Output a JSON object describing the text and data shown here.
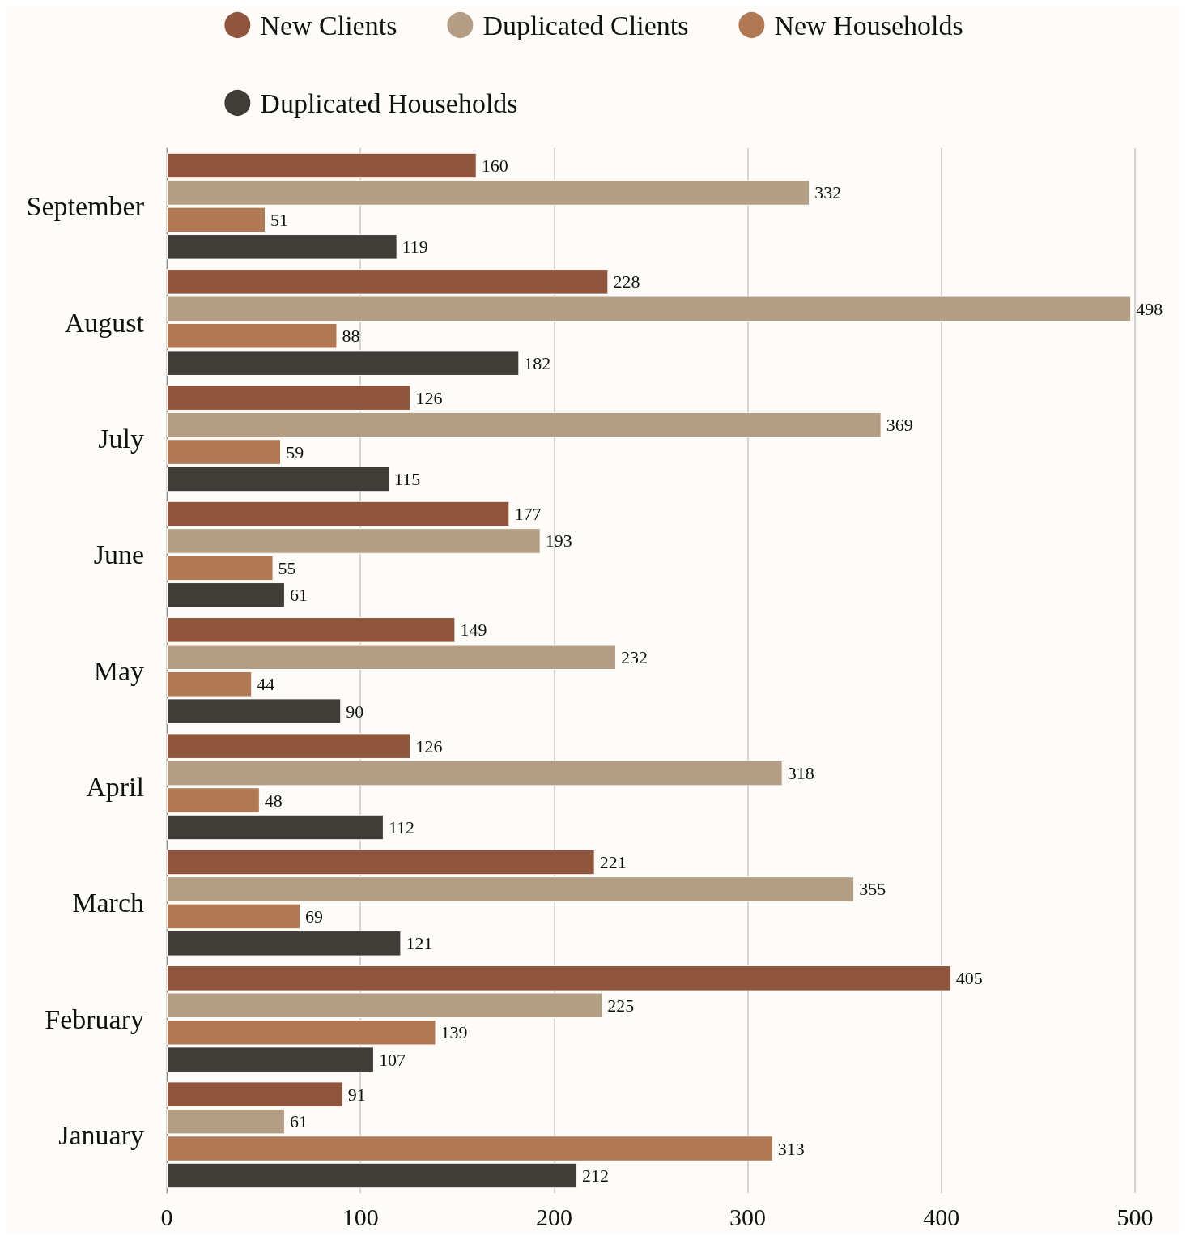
{
  "chart_data": {
    "type": "bar",
    "orientation": "horizontal",
    "categories": [
      "September",
      "August",
      "July",
      "June",
      "May",
      "April",
      "March",
      "February",
      "January"
    ],
    "series": [
      {
        "name": "New Clients",
        "color": "#8f553d",
        "values": [
          160,
          228,
          126,
          177,
          149,
          126,
          221,
          405,
          91
        ]
      },
      {
        "name": "Duplicated Clients",
        "color": "#b39e85",
        "values": [
          332,
          498,
          369,
          193,
          232,
          318,
          355,
          225,
          61
        ]
      },
      {
        "name": "New Households",
        "color": "#b07853",
        "values": [
          51,
          88,
          59,
          55,
          44,
          48,
          69,
          139,
          313
        ]
      },
      {
        "name": "Duplicated Households",
        "color": "#403c38",
        "values": [
          119,
          182,
          115,
          61,
          90,
          112,
          121,
          107,
          212
        ]
      }
    ],
    "xlim": [
      0,
      500
    ],
    "xticks": [
      0,
      100,
      200,
      300,
      400,
      500
    ],
    "grid": "x",
    "legend": "top",
    "data_labels": true
  }
}
